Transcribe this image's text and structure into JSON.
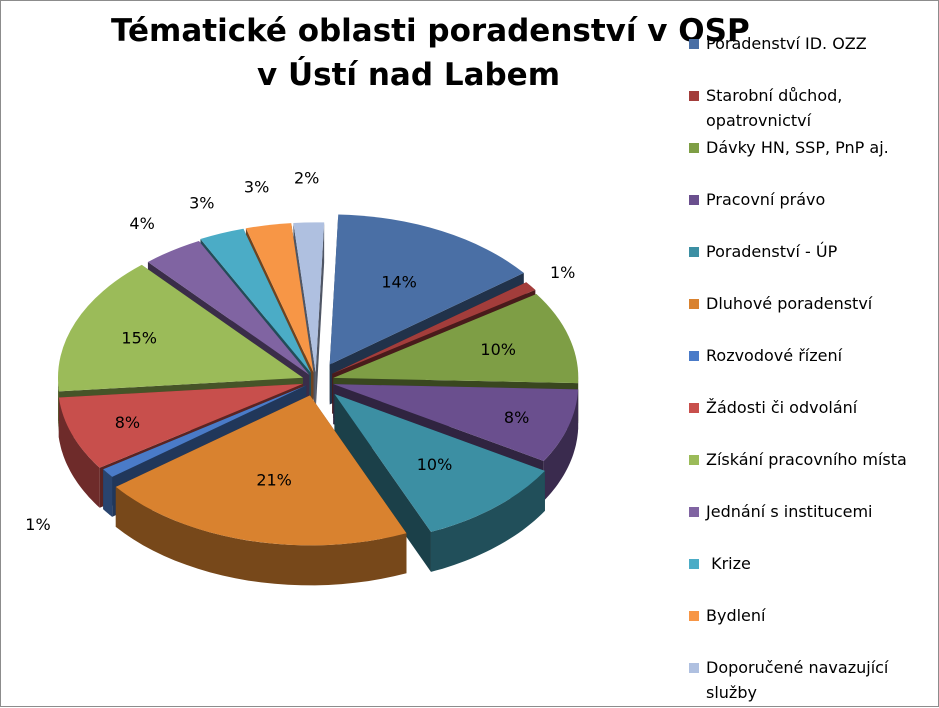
{
  "title_lines": [
    "Tématické oblasti poradenství v OSP",
    "v Ústí nad Labem"
  ],
  "chart_data": {
    "type": "pie",
    "title": "Tématické oblasti poradenství v OSP v Ústí nad Labem",
    "style": "3d-exploded",
    "legend_position": "right",
    "categories": [
      "Poradenství ID. OZZ",
      "Starobní důchod, opatrovnictví",
      "Dávky HN, SSP, PnP aj.",
      "Pracovní právo",
      "Poradenství - ÚP",
      "Dluhové poradenství",
      "Rozvodové řízení",
      "Žádosti či odvolání",
      "Získání pracovního místa",
      "Jednání s institucemi",
      " Krize",
      "Bydlení",
      "Doporučené navazující služby"
    ],
    "values": [
      14,
      1,
      10,
      8,
      10,
      21,
      1,
      8,
      15,
      4,
      3,
      3,
      2
    ],
    "labels": [
      "14%",
      "1%",
      "10%",
      "8%",
      "10%",
      "21%",
      "1%",
      "8%",
      "15%",
      "4%",
      "3%",
      "3%",
      "2%"
    ],
    "colors": [
      "#4A6FA5",
      "#A33D3B",
      "#7E9E45",
      "#6A4F8E",
      "#3C8FA3",
      "#D9822F",
      "#4A7BC8",
      "#C84F4C",
      "#9BBB59",
      "#8064A2",
      "#4BACC6",
      "#F79646",
      "#AFC0E0"
    ]
  }
}
